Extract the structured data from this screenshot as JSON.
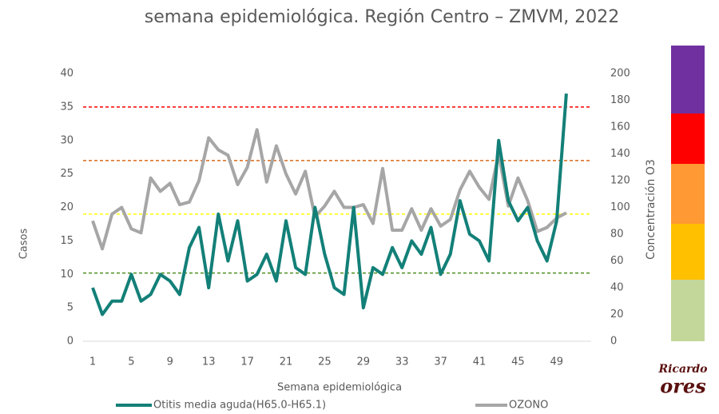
{
  "chart_data": {
    "type": "line",
    "title": "semana epidemiológica. Región Centro – ZMVM, 2022",
    "x_label": "Semana epidemiológica",
    "y_label": "Casos",
    "y2_label": "Concentración O3",
    "categories": [
      "1",
      null,
      null,
      null,
      "5",
      null,
      null,
      null,
      "9",
      null,
      null,
      null,
      "13",
      null,
      null,
      null,
      "17",
      null,
      null,
      null,
      "21",
      null,
      null,
      null,
      "25",
      null,
      null,
      null,
      "29",
      null,
      null,
      null,
      "33",
      null,
      null,
      null,
      "37",
      null,
      null,
      null,
      "41",
      null,
      null,
      null,
      "45",
      null,
      null,
      null,
      "49",
      null,
      null,
      null
    ],
    "ylim": [
      0,
      40
    ],
    "yticks": [
      0,
      5,
      10,
      15,
      20,
      25,
      30,
      35,
      40
    ],
    "y2lim": [
      0,
      200
    ],
    "y2ticks": [
      0,
      20,
      40,
      60,
      80,
      100,
      120,
      140,
      160,
      180,
      200
    ],
    "series": [
      {
        "name": "Otitis media aguda(H65.0-H65.1)",
        "color": "#138078",
        "values": [
          8,
          4,
          6,
          6,
          10,
          6,
          7,
          10,
          9,
          7,
          14,
          17,
          8,
          19,
          12,
          18,
          9,
          10,
          13,
          9,
          18,
          11,
          10,
          20,
          13,
          8,
          7,
          20,
          5,
          11,
          10,
          14,
          11,
          15,
          13,
          17,
          10,
          13,
          21,
          16,
          15,
          12,
          30,
          21,
          18,
          20,
          15,
          12,
          18,
          37,
          null,
          null
        ]
      },
      {
        "name": "OZONO",
        "color": "#a6a6a6",
        "axis": "y2",
        "values": [
          90,
          69,
          95,
          100,
          84,
          81,
          122,
          112,
          118,
          102,
          104,
          120,
          152,
          143,
          139,
          117,
          130,
          158,
          119,
          146,
          125,
          110,
          127,
          93,
          101,
          112,
          100,
          100,
          102,
          88,
          129,
          83,
          83,
          99,
          83,
          99,
          86,
          91,
          113,
          127,
          115,
          106,
          140,
          101,
          122,
          105,
          82,
          85,
          92,
          96,
          null,
          null
        ]
      }
    ],
    "reference_lines": [
      {
        "value": 51,
        "color": "#4e8f1f",
        "axis": "y2"
      },
      {
        "value": 95,
        "color": "#ffff00",
        "axis": "y2"
      },
      {
        "value": 135,
        "color": "#d86a1a",
        "axis": "y2"
      },
      {
        "value": 175,
        "color": "#ff0000",
        "axis": "y2"
      }
    ],
    "logo": [
      "Ricardo",
      "ores"
    ]
  }
}
